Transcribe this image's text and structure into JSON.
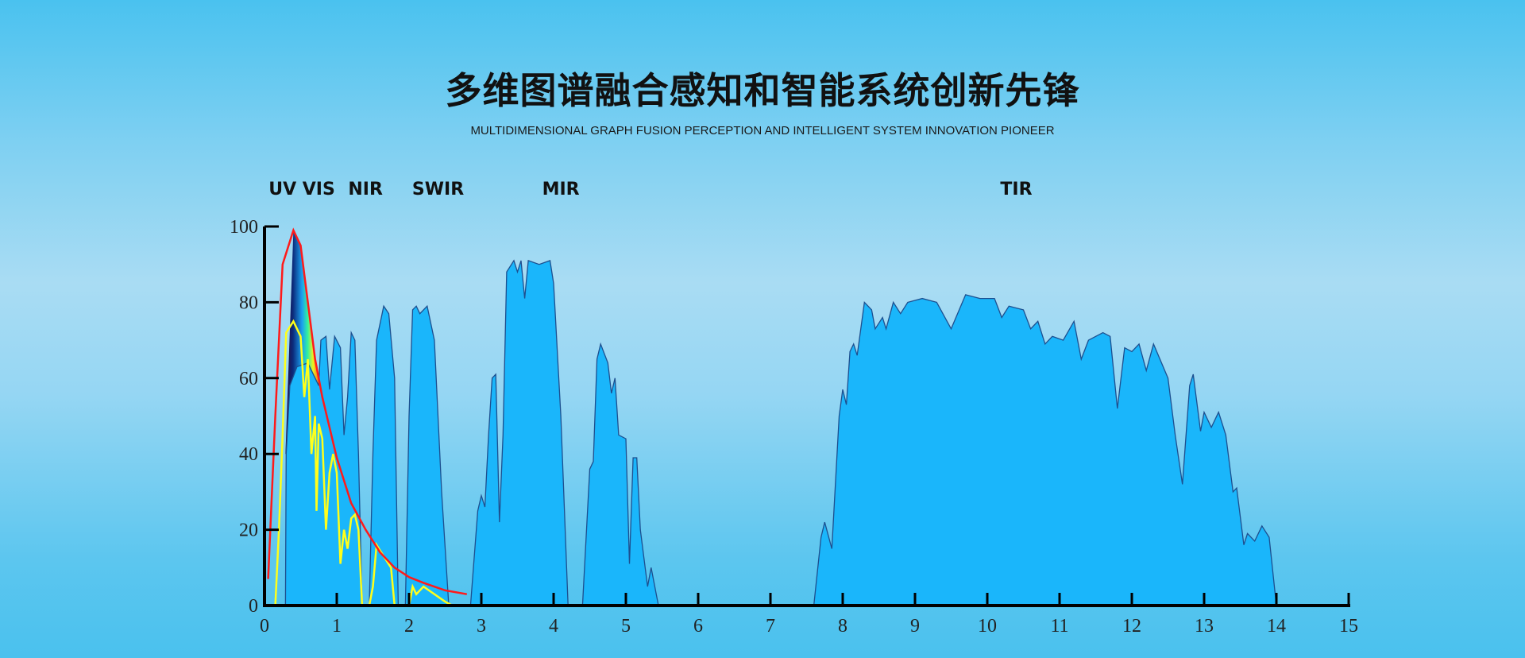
{
  "title": "多维图谱融合感知和智能系统创新先锋",
  "subtitle": "MULTIDIMENSIONAL GRAPH FUSION PERCEPTION AND INTELLIGENT SYSTEM INNOVATION PIONEER",
  "bands": [
    {
      "label": "UV",
      "x": 0.25
    },
    {
      "label": "VIS",
      "x": 0.75
    },
    {
      "label": "NIR",
      "x": 1.4
    },
    {
      "label": "SWIR",
      "x": 2.4
    },
    {
      "label": "MIR",
      "x": 4.1
    },
    {
      "label": "TIR",
      "x": 10.4
    }
  ],
  "chart_data": {
    "type": "area",
    "title": "",
    "xlabel": "",
    "ylabel": "",
    "xlim": [
      0,
      15
    ],
    "ylim": [
      0,
      100
    ],
    "xticks": [
      0,
      1,
      2,
      3,
      4,
      5,
      6,
      7,
      8,
      9,
      10,
      11,
      12,
      13,
      14,
      15
    ],
    "yticks": [
      0,
      20,
      40,
      60,
      80,
      100
    ],
    "grid": false,
    "colors": {
      "transmission": "#1ab6fb",
      "transmission_edge": "#1d4f8f",
      "red_curve": "#ff1a1a",
      "yellow_curve": "#ffff1a"
    },
    "series": [
      {
        "kind": "area",
        "segments": [
          [
            [
              0.29,
              0
            ],
            [
              0.3,
              40
            ],
            [
              0.35,
              58
            ],
            [
              0.45,
              63
            ],
            [
              0.6,
              64
            ],
            [
              0.75,
              58
            ],
            [
              0.78,
              70
            ],
            [
              0.85,
              71
            ],
            [
              0.9,
              57
            ],
            [
              0.97,
              71
            ],
            [
              1.05,
              68
            ],
            [
              1.1,
              45
            ],
            [
              1.15,
              55
            ],
            [
              1.2,
              72
            ],
            [
              1.25,
              70
            ],
            [
              1.3,
              40
            ],
            [
              1.35,
              0
            ]
          ],
          [
            [
              1.45,
              0
            ],
            [
              1.5,
              40
            ],
            [
              1.55,
              70
            ],
            [
              1.65,
              79
            ],
            [
              1.72,
              77
            ],
            [
              1.8,
              60
            ],
            [
              1.85,
              0
            ]
          ],
          [
            [
              1.95,
              0
            ],
            [
              2.0,
              50
            ],
            [
              2.05,
              78
            ],
            [
              2.1,
              79
            ],
            [
              2.15,
              77
            ],
            [
              2.25,
              79
            ],
            [
              2.35,
              70
            ],
            [
              2.45,
              30
            ],
            [
              2.55,
              0
            ]
          ],
          [
            [
              2.85,
              0
            ],
            [
              2.95,
              25
            ],
            [
              3.0,
              29
            ],
            [
              3.05,
              26
            ],
            [
              3.1,
              45
            ],
            [
              3.15,
              60
            ],
            [
              3.2,
              61
            ],
            [
              3.25,
              22
            ],
            [
              3.3,
              45
            ],
            [
              3.35,
              88
            ],
            [
              3.45,
              91
            ],
            [
              3.5,
              88
            ],
            [
              3.55,
              91
            ],
            [
              3.6,
              81
            ],
            [
              3.65,
              91
            ],
            [
              3.8,
              90
            ],
            [
              3.95,
              91
            ],
            [
              4.0,
              85
            ],
            [
              4.1,
              50
            ],
            [
              4.2,
              0
            ]
          ],
          [
            [
              4.4,
              0
            ],
            [
              4.5,
              36
            ],
            [
              4.55,
              38
            ],
            [
              4.6,
              65
            ],
            [
              4.65,
              69
            ],
            [
              4.75,
              64
            ],
            [
              4.8,
              56
            ],
            [
              4.85,
              60
            ],
            [
              4.9,
              45
            ],
            [
              5.0,
              44
            ],
            [
              5.05,
              11
            ],
            [
              5.1,
              39
            ],
            [
              5.15,
              39
            ],
            [
              5.2,
              20
            ],
            [
              5.3,
              5
            ],
            [
              5.35,
              10
            ],
            [
              5.45,
              0
            ]
          ],
          [
            [
              7.6,
              0
            ],
            [
              7.7,
              18
            ],
            [
              7.75,
              22
            ],
            [
              7.85,
              15
            ],
            [
              7.95,
              50
            ],
            [
              8.0,
              57
            ],
            [
              8.05,
              53
            ],
            [
              8.1,
              67
            ],
            [
              8.15,
              69
            ],
            [
              8.2,
              66
            ],
            [
              8.3,
              80
            ],
            [
              8.4,
              78
            ],
            [
              8.45,
              73
            ],
            [
              8.55,
              76
            ],
            [
              8.6,
              73
            ],
            [
              8.7,
              80
            ],
            [
              8.8,
              77
            ],
            [
              8.9,
              80
            ],
            [
              9.1,
              81
            ],
            [
              9.3,
              80
            ],
            [
              9.5,
              73
            ],
            [
              9.7,
              82
            ],
            [
              9.9,
              81
            ],
            [
              10.1,
              81
            ],
            [
              10.2,
              76
            ],
            [
              10.3,
              79
            ],
            [
              10.5,
              78
            ],
            [
              10.6,
              73
            ],
            [
              10.7,
              75
            ],
            [
              10.8,
              69
            ],
            [
              10.9,
              71
            ],
            [
              11.05,
              70
            ],
            [
              11.2,
              75
            ],
            [
              11.3,
              65
            ],
            [
              11.4,
              70
            ],
            [
              11.6,
              72
            ],
            [
              11.7,
              71
            ],
            [
              11.8,
              52
            ],
            [
              11.9,
              68
            ],
            [
              12.0,
              67
            ],
            [
              12.1,
              69
            ],
            [
              12.2,
              62
            ],
            [
              12.3,
              69
            ],
            [
              12.5,
              60
            ],
            [
              12.6,
              45
            ],
            [
              12.7,
              32
            ],
            [
              12.8,
              58
            ],
            [
              12.85,
              61
            ],
            [
              12.95,
              46
            ],
            [
              13.0,
              51
            ],
            [
              13.1,
              47
            ],
            [
              13.2,
              51
            ],
            [
              13.3,
              45
            ],
            [
              13.4,
              30
            ],
            [
              13.45,
              31
            ],
            [
              13.55,
              16
            ],
            [
              13.6,
              19
            ],
            [
              13.7,
              17
            ],
            [
              13.8,
              21
            ],
            [
              13.9,
              18
            ],
            [
              14.0,
              0
            ]
          ]
        ]
      },
      {
        "kind": "line",
        "color": "#ff1a1a",
        "points": [
          [
            0.05,
            7
          ],
          [
            0.15,
            50
          ],
          [
            0.25,
            90
          ],
          [
            0.4,
            99
          ],
          [
            0.5,
            95
          ],
          [
            0.6,
            80
          ],
          [
            0.7,
            65
          ],
          [
            0.8,
            55
          ],
          [
            1.0,
            39
          ],
          [
            1.2,
            27
          ],
          [
            1.4,
            20
          ],
          [
            1.6,
            14
          ],
          [
            1.8,
            10
          ],
          [
            2.0,
            7.5
          ],
          [
            2.2,
            6
          ],
          [
            2.5,
            4
          ],
          [
            2.8,
            3
          ]
        ]
      },
      {
        "kind": "line",
        "color": "#ffff1a",
        "points": [
          [
            0.15,
            0
          ],
          [
            0.2,
            20
          ],
          [
            0.25,
            45
          ],
          [
            0.3,
            72
          ],
          [
            0.4,
            75
          ],
          [
            0.5,
            71
          ],
          [
            0.55,
            55
          ],
          [
            0.6,
            65
          ],
          [
            0.65,
            40
          ],
          [
            0.7,
            50
          ],
          [
            0.72,
            25
          ],
          [
            0.75,
            48
          ],
          [
            0.8,
            44
          ],
          [
            0.85,
            20
          ],
          [
            0.9,
            35
          ],
          [
            0.95,
            40
          ],
          [
            1.0,
            35
          ],
          [
            1.05,
            11
          ],
          [
            1.1,
            20
          ],
          [
            1.15,
            15
          ],
          [
            1.2,
            23
          ],
          [
            1.25,
            24
          ],
          [
            1.3,
            20
          ],
          [
            1.35,
            0
          ],
          [
            1.45,
            0
          ],
          [
            1.5,
            5
          ],
          [
            1.55,
            16
          ],
          [
            1.65,
            13
          ],
          [
            1.75,
            10
          ],
          [
            1.8,
            0
          ],
          [
            2.0,
            0
          ],
          [
            2.05,
            5
          ],
          [
            2.1,
            3
          ],
          [
            2.2,
            5
          ],
          [
            2.5,
            1
          ],
          [
            2.6,
            0
          ]
        ]
      }
    ]
  }
}
